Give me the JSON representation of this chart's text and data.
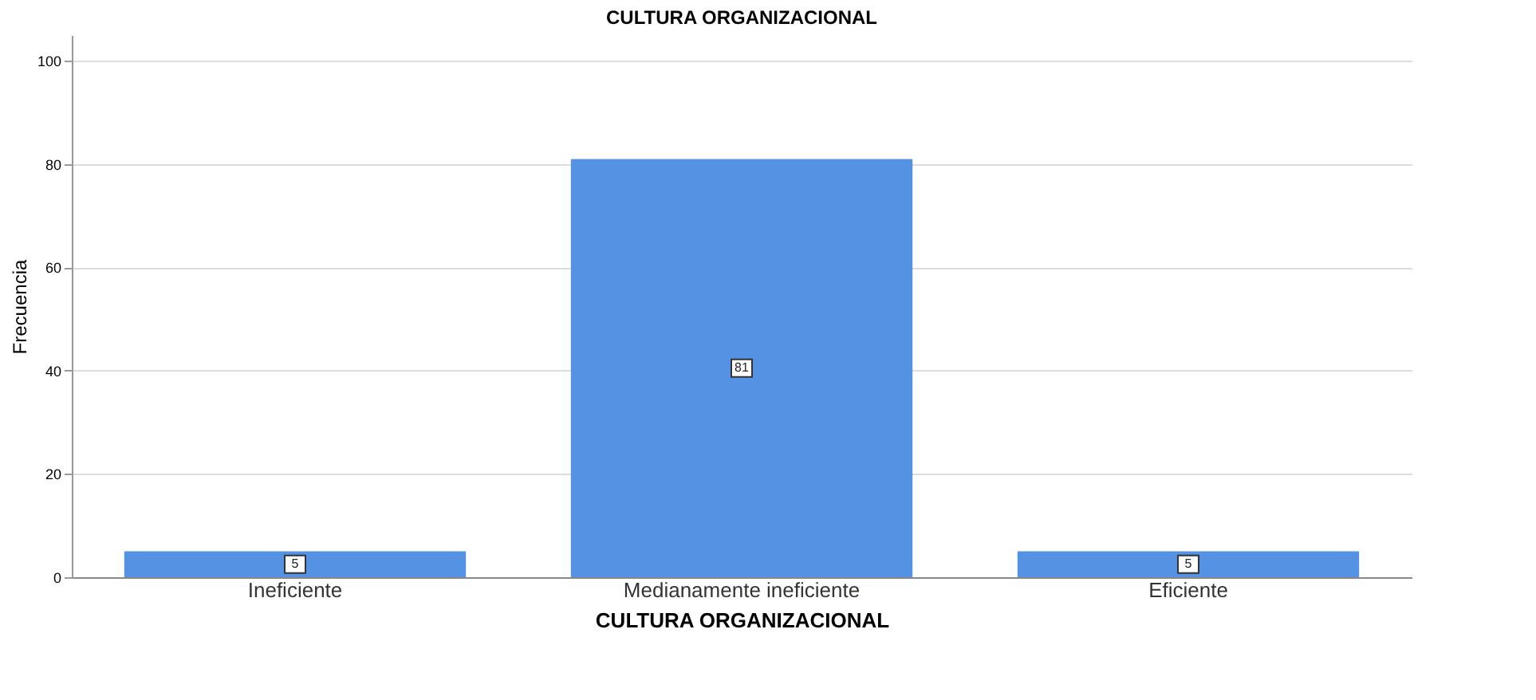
{
  "chart_data": {
    "type": "bar",
    "title": "CULTURA ORGANIZACIONAL",
    "xlabel": "CULTURA ORGANIZACIONAL",
    "ylabel": "Frecuencia",
    "categories": [
      "Ineficiente",
      "Medianamente ineficiente",
      "Eficiente"
    ],
    "values": [
      5,
      81,
      5
    ],
    "color": "#5592e3",
    "ylim": [
      0,
      105
    ],
    "yticks": [
      0,
      20,
      40,
      60,
      80,
      100
    ],
    "grid": "y",
    "data_labels": true
  }
}
